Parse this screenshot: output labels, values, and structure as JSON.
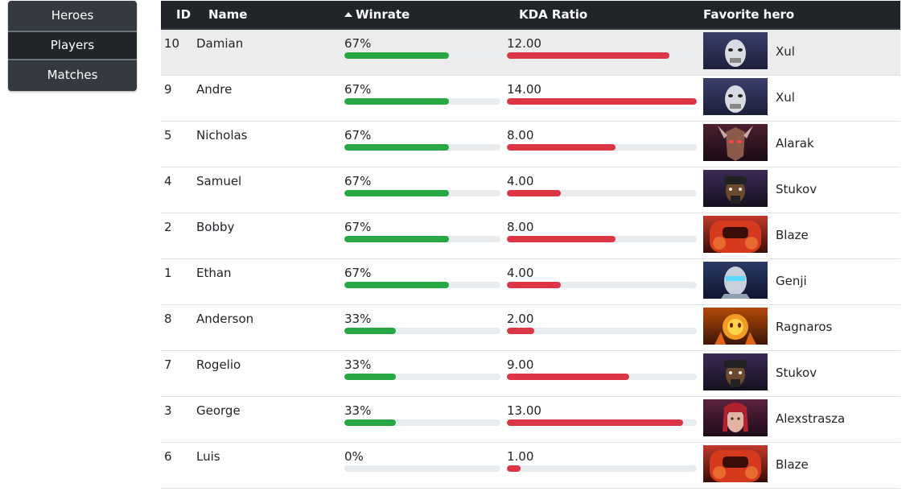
{
  "nav": [
    {
      "label": "Heroes",
      "active": false
    },
    {
      "label": "Players",
      "active": true
    },
    {
      "label": "Matches",
      "active": false
    }
  ],
  "table": {
    "headers": {
      "id": "ID",
      "name": "Name",
      "winrate": "Winrate",
      "kda": "KDA Ratio",
      "hero": "Favorite hero"
    },
    "sort": {
      "column": "winrate",
      "direction": "descending"
    },
    "kda_max": 14,
    "colors": {
      "winrate": "#28a745",
      "kda": "#dc3545",
      "header": "#212529",
      "track": "#e9ecef"
    },
    "rows": [
      {
        "id": "10",
        "name": "Damian",
        "winrate": "67%",
        "winrate_value": 67,
        "kda": "12.00",
        "kda_value": 12,
        "hero": "Xul",
        "hero_icon": "xul-portrait"
      },
      {
        "id": "9",
        "name": "Andre",
        "winrate": "67%",
        "winrate_value": 67,
        "kda": "14.00",
        "kda_value": 14,
        "hero": "Xul",
        "hero_icon": "xul-portrait"
      },
      {
        "id": "5",
        "name": "Nicholas",
        "winrate": "67%",
        "winrate_value": 67,
        "kda": "8.00",
        "kda_value": 8,
        "hero": "Alarak",
        "hero_icon": "alarak-portrait"
      },
      {
        "id": "4",
        "name": "Samuel",
        "winrate": "67%",
        "winrate_value": 67,
        "kda": "4.00",
        "kda_value": 4,
        "hero": "Stukov",
        "hero_icon": "stukov-portrait"
      },
      {
        "id": "2",
        "name": "Bobby",
        "winrate": "67%",
        "winrate_value": 67,
        "kda": "8.00",
        "kda_value": 8,
        "hero": "Blaze",
        "hero_icon": "blaze-portrait"
      },
      {
        "id": "1",
        "name": "Ethan",
        "winrate": "67%",
        "winrate_value": 67,
        "kda": "4.00",
        "kda_value": 4,
        "hero": "Genji",
        "hero_icon": "genji-portrait"
      },
      {
        "id": "8",
        "name": "Anderson",
        "winrate": "33%",
        "winrate_value": 33,
        "kda": "2.00",
        "kda_value": 2,
        "hero": "Ragnaros",
        "hero_icon": "ragnaros-portrait"
      },
      {
        "id": "7",
        "name": "Rogelio",
        "winrate": "33%",
        "winrate_value": 33,
        "kda": "9.00",
        "kda_value": 9,
        "hero": "Stukov",
        "hero_icon": "stukov-portrait"
      },
      {
        "id": "3",
        "name": "George",
        "winrate": "33%",
        "winrate_value": 33,
        "kda": "13.00",
        "kda_value": 13,
        "hero": "Alexstrasza",
        "hero_icon": "alexstrasza-portrait"
      },
      {
        "id": "6",
        "name": "Luis",
        "winrate": "0%",
        "winrate_value": 0,
        "kda": "1.00",
        "kda_value": 1,
        "hero": "Blaze",
        "hero_icon": "blaze-portrait"
      }
    ]
  }
}
